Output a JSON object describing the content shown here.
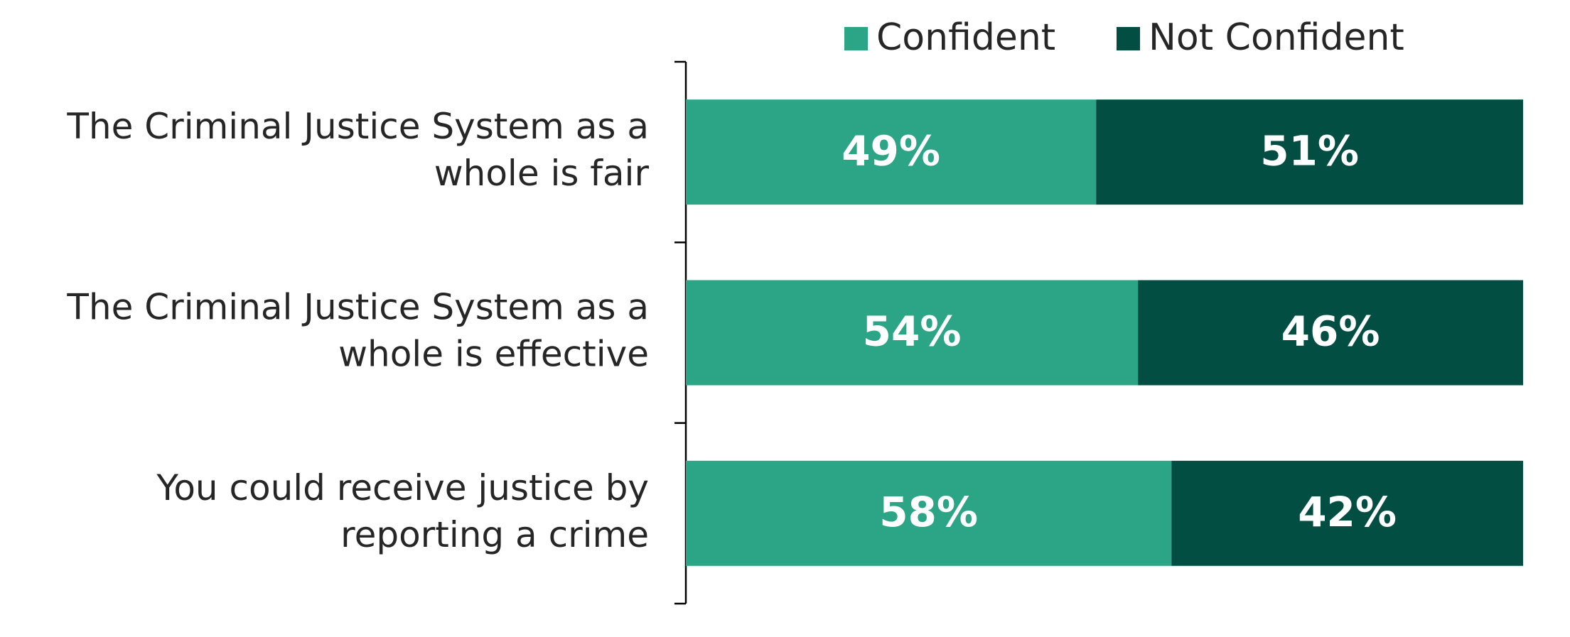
{
  "chart_data": {
    "type": "bar",
    "orientation": "horizontal",
    "stacked": true,
    "categories": [
      "The Criminal Justice System as a whole is fair",
      "The Criminal Justice System as a whole is effective",
      "You could receive justice by reporting a crime"
    ],
    "series": [
      {
        "name": "Confident",
        "color": "#2ca586",
        "values": [
          49,
          54,
          58
        ],
        "value_labels": [
          "49%",
          "54%",
          "58%"
        ]
      },
      {
        "name": "Not Confident",
        "color": "#034e42",
        "values": [
          51,
          46,
          42
        ],
        "value_labels": [
          "51%",
          "46%",
          "42%"
        ]
      }
    ],
    "xlim": [
      0,
      100
    ],
    "legend": "top"
  }
}
